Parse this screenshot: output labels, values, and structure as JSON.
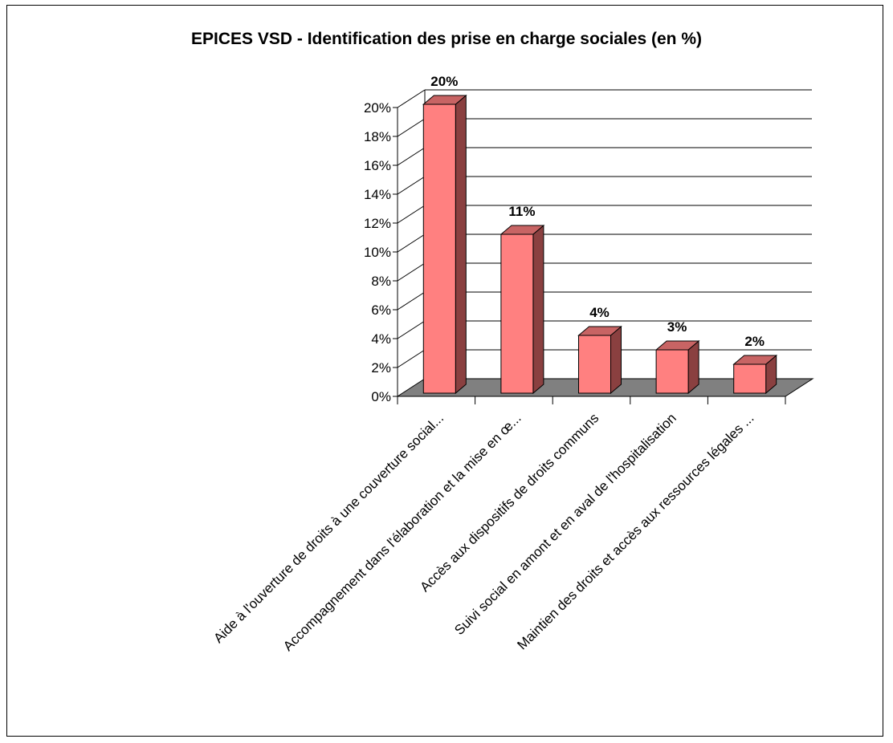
{
  "chart_data": {
    "type": "bar",
    "title": "EPICES VSD - Identification des prise en charge sociales (en %)",
    "xlabel": "",
    "ylabel": "",
    "ylim": [
      0,
      20
    ],
    "yticks": [
      "0%",
      "2%",
      "4%",
      "6%",
      "8%",
      "10%",
      "12%",
      "14%",
      "16%",
      "18%",
      "20%"
    ],
    "grid": true,
    "legend": "none",
    "categories": [
      "Aide à l'ouverture de droits à une couverture social...",
      "Accompagnement dans l'élaboration et la mise en œ...",
      "Accès aux dispositifs de droits communs",
      "Suivi social en amont et en aval de l'hospitalisation",
      "Maintien des droits et accès aux ressources légales ..."
    ],
    "values": [
      20,
      11,
      4,
      3,
      2
    ],
    "data_labels": [
      "20%",
      "11%",
      "4%",
      "3%",
      "2%"
    ],
    "colors": {
      "bar_front": "#ff8080",
      "bar_top": "#c86464",
      "bar_side": "#8a4040",
      "floor": "#808080",
      "grid": "#000000"
    }
  }
}
